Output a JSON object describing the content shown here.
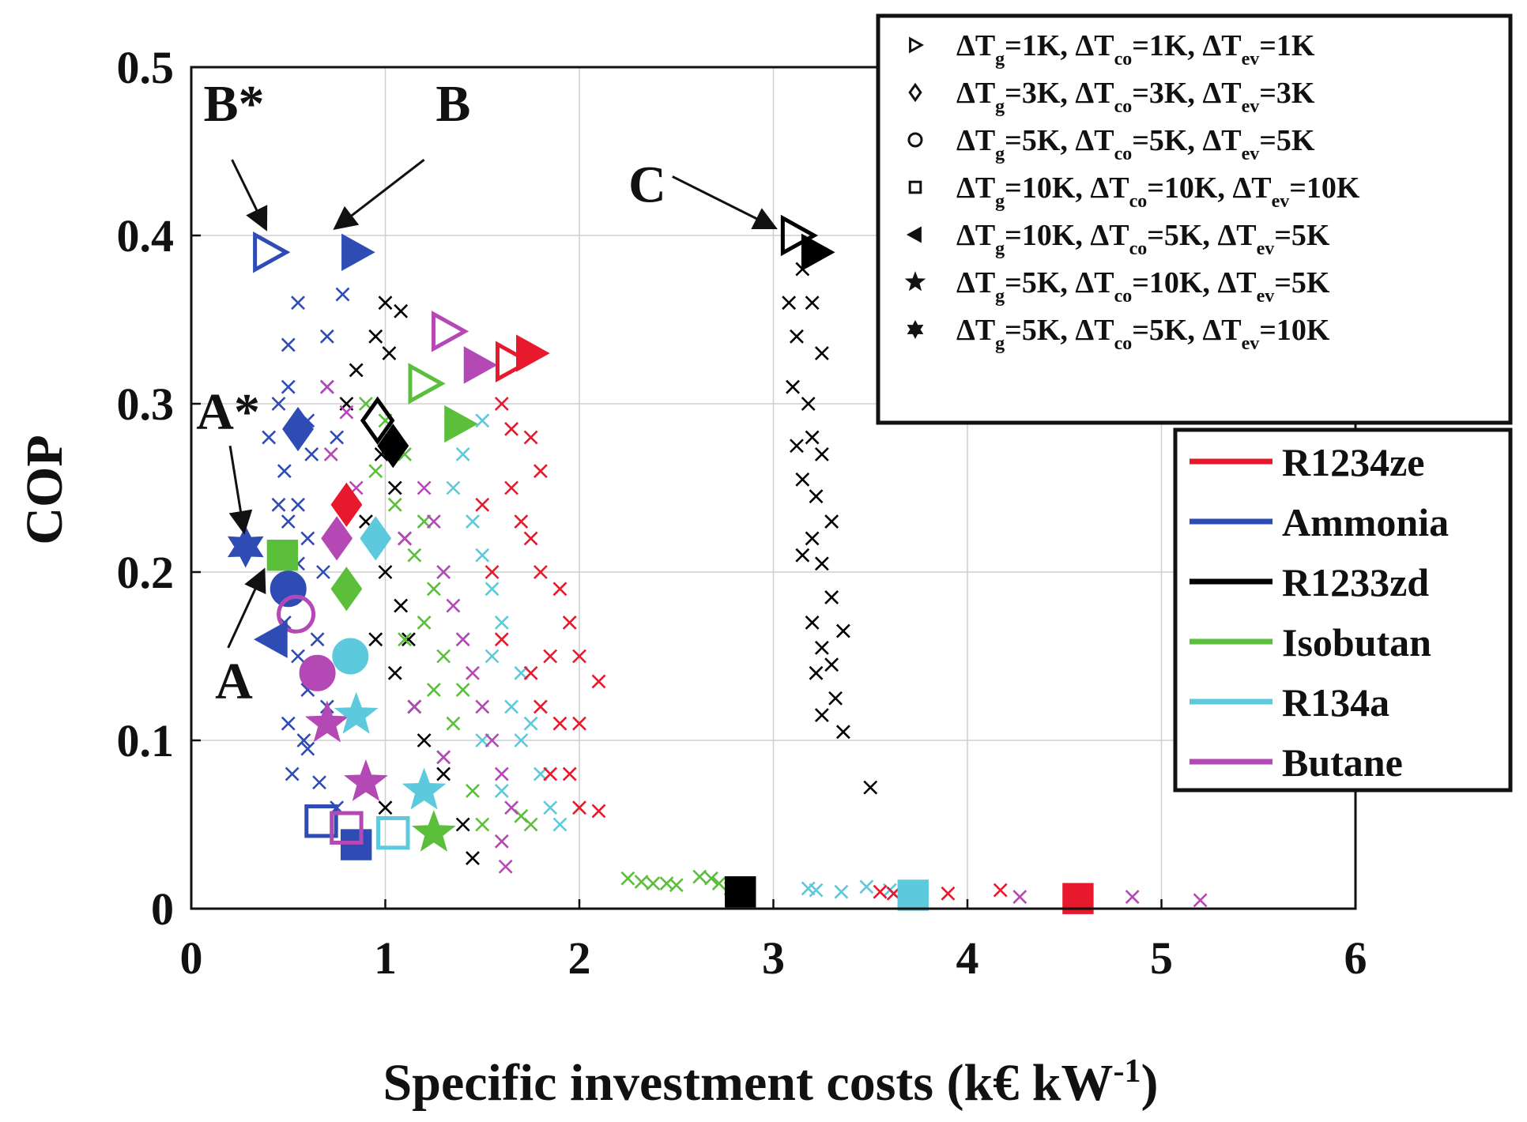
{
  "chart_data": {
    "type": "scatter",
    "xlabel": "Specific investment costs (k€ kW",
    "xlabel_sup": "-1",
    "xlabel_end": ")",
    "ylabel": "COP",
    "xlim": [
      0,
      6
    ],
    "ylim": [
      0,
      0.5
    ],
    "xticks": [
      "0",
      "1",
      "2",
      "3",
      "4",
      "5",
      "6"
    ],
    "yticks": [
      "0",
      "0.1",
      "0.2",
      "0.3",
      "0.4",
      "0.5"
    ],
    "grid": true,
    "colors": {
      "R1234ze": "#e8192c",
      "Ammonia": "#2f4cb4",
      "R1233zd": "#000000",
      "Isobutan": "#5cbf3c",
      "R134a": "#5cc9dd",
      "Butane": "#b448b4"
    },
    "fluid_legend": {
      "position": "right",
      "items": [
        {
          "name": "R1234ze",
          "color": "#e8192c"
        },
        {
          "name": "Ammonia",
          "color": "#2f4cb4"
        },
        {
          "name": "R1233zd",
          "color": "#000000"
        },
        {
          "name": "Isobutan",
          "color": "#5cbf3c"
        },
        {
          "name": "R134a",
          "color": "#5cc9dd"
        },
        {
          "name": "Butane",
          "color": "#b448b4"
        }
      ]
    },
    "marker_legend": {
      "position": "top-right",
      "items": [
        {
          "marker": "triangle-right",
          "g": "1K",
          "co": "1K",
          "ev": "1K"
        },
        {
          "marker": "diamond",
          "g": "3K",
          "co": "3K",
          "ev": "3K"
        },
        {
          "marker": "circle",
          "g": "5K",
          "co": "5K",
          "ev": "5K"
        },
        {
          "marker": "square",
          "g": "10K",
          "co": "10K",
          "ev": "10K"
        },
        {
          "marker": "triangle-left",
          "g": "10K",
          "co": "5K",
          "ev": "5K"
        },
        {
          "marker": "pentagram",
          "g": "5K",
          "co": "10K",
          "ev": "5K"
        },
        {
          "marker": "hexagram",
          "g": "5K",
          "co": "5K",
          "ev": "10K"
        }
      ]
    },
    "legend_labels": {
      "delta": "ΔT",
      "g": "g",
      "co": "co",
      "ev": "ev"
    },
    "annotations": [
      {
        "label": "B*",
        "text_at": [
          0.22,
          0.468
        ],
        "arrow_from": [
          0.21,
          0.445
        ],
        "arrow_to": [
          0.38,
          0.405
        ]
      },
      {
        "label": "B",
        "text_at": [
          1.35,
          0.468
        ],
        "arrow_from": [
          1.2,
          0.445
        ],
        "arrow_to": [
          0.75,
          0.405
        ]
      },
      {
        "label": "C",
        "text_at": [
          2.35,
          0.42
        ],
        "arrow_from": [
          2.48,
          0.435
        ],
        "arrow_to": [
          3.0,
          0.405
        ]
      },
      {
        "label": "A*",
        "text_at": [
          0.19,
          0.285
        ],
        "arrow_from": [
          0.2,
          0.275
        ],
        "arrow_to": [
          0.27,
          0.225
        ]
      },
      {
        "label": "A",
        "text_at": [
          0.22,
          0.125
        ],
        "arrow_from": [
          0.19,
          0.155
        ],
        "arrow_to": [
          0.37,
          0.2
        ]
      }
    ],
    "highlighted_points": [
      {
        "fluid": "Ammonia",
        "marker": "triangle-right",
        "filled": false,
        "x": 0.4,
        "y": 0.39
      },
      {
        "fluid": "Ammonia",
        "marker": "triangle-right",
        "filled": true,
        "x": 0.85,
        "y": 0.39
      },
      {
        "fluid": "R1233zd",
        "marker": "triangle-right",
        "filled": false,
        "x": 3.12,
        "y": 0.4
      },
      {
        "fluid": "R1233zd",
        "marker": "triangle-right",
        "filled": true,
        "x": 3.22,
        "y": 0.39
      },
      {
        "fluid": "Butane",
        "marker": "triangle-right",
        "filled": false,
        "x": 1.32,
        "y": 0.343
      },
      {
        "fluid": "Butane",
        "marker": "triangle-right",
        "filled": true,
        "x": 1.48,
        "y": 0.323
      },
      {
        "fluid": "R1234ze",
        "marker": "triangle-right",
        "filled": false,
        "x": 1.65,
        "y": 0.325
      },
      {
        "fluid": "R1234ze",
        "marker": "triangle-right",
        "filled": true,
        "x": 1.75,
        "y": 0.33
      },
      {
        "fluid": "Isobutan",
        "marker": "triangle-right",
        "filled": false,
        "x": 1.2,
        "y": 0.312
      },
      {
        "fluid": "Isobutan",
        "marker": "triangle-right",
        "filled": true,
        "x": 1.38,
        "y": 0.288
      },
      {
        "fluid": "R1233zd",
        "marker": "diamond",
        "filled": false,
        "x": 0.96,
        "y": 0.29
      },
      {
        "fluid": "R1233zd",
        "marker": "diamond",
        "filled": true,
        "x": 1.04,
        "y": 0.275
      },
      {
        "fluid": "Ammonia",
        "marker": "diamond",
        "filled": true,
        "x": 0.55,
        "y": 0.285
      },
      {
        "fluid": "R1234ze",
        "marker": "diamond",
        "filled": true,
        "x": 0.8,
        "y": 0.24
      },
      {
        "fluid": "Butane",
        "marker": "diamond",
        "filled": true,
        "x": 0.75,
        "y": 0.22
      },
      {
        "fluid": "R134a",
        "marker": "diamond",
        "filled": true,
        "x": 0.95,
        "y": 0.22
      },
      {
        "fluid": "Isobutan",
        "marker": "diamond",
        "filled": true,
        "x": 0.8,
        "y": 0.19
      },
      {
        "fluid": "Ammonia",
        "marker": "hexagram",
        "filled": true,
        "x": 0.28,
        "y": 0.215
      },
      {
        "fluid": "Isobutan",
        "marker": "square",
        "filled": true,
        "x": 0.47,
        "y": 0.21
      },
      {
        "fluid": "Ammonia",
        "marker": "circle",
        "filled": true,
        "x": 0.5,
        "y": 0.19
      },
      {
        "fluid": "Butane",
        "marker": "circle",
        "filled": false,
        "x": 0.54,
        "y": 0.175
      },
      {
        "fluid": "R134a",
        "marker": "circle",
        "filled": true,
        "x": 0.82,
        "y": 0.15
      },
      {
        "fluid": "Butane",
        "marker": "circle",
        "filled": true,
        "x": 0.65,
        "y": 0.14
      },
      {
        "fluid": "Ammonia",
        "marker": "triangle-left",
        "filled": true,
        "x": 0.42,
        "y": 0.16
      },
      {
        "fluid": "Butane",
        "marker": "pentagram",
        "filled": true,
        "x": 0.7,
        "y": 0.11
      },
      {
        "fluid": "R134a",
        "marker": "pentagram",
        "filled": true,
        "x": 0.85,
        "y": 0.115
      },
      {
        "fluid": "Butane",
        "marker": "pentagram",
        "filled": true,
        "x": 0.9,
        "y": 0.075
      },
      {
        "fluid": "R134a",
        "marker": "pentagram",
        "filled": true,
        "x": 1.2,
        "y": 0.07
      },
      {
        "fluid": "Isobutan",
        "marker": "pentagram",
        "filled": true,
        "x": 1.25,
        "y": 0.045
      },
      {
        "fluid": "Ammonia",
        "marker": "square",
        "filled": false,
        "x": 0.67,
        "y": 0.052
      },
      {
        "fluid": "Ammonia",
        "marker": "square",
        "filled": true,
        "x": 0.85,
        "y": 0.038
      },
      {
        "fluid": "Butane",
        "marker": "square",
        "filled": false,
        "x": 0.8,
        "y": 0.048
      },
      {
        "fluid": "R134a",
        "marker": "square",
        "filled": false,
        "x": 1.04,
        "y": 0.045
      },
      {
        "fluid": "R1233zd",
        "marker": "square",
        "filled": true,
        "x": 2.83,
        "y": 0.01
      },
      {
        "fluid": "R134a",
        "marker": "square",
        "filled": true,
        "x": 3.72,
        "y": 0.008
      },
      {
        "fluid": "R1234ze",
        "marker": "square",
        "filled": true,
        "x": 4.57,
        "y": 0.006
      }
    ],
    "cross_series": [
      {
        "fluid": "Ammonia",
        "points": [
          [
            0.55,
            0.36
          ],
          [
            0.78,
            0.365
          ],
          [
            0.5,
            0.335
          ],
          [
            0.5,
            0.31
          ],
          [
            0.6,
            0.29
          ],
          [
            0.48,
            0.26
          ],
          [
            0.55,
            0.24
          ],
          [
            0.6,
            0.22
          ],
          [
            0.52,
            0.19
          ],
          [
            0.48,
            0.17
          ],
          [
            0.55,
            0.15
          ],
          [
            0.6,
            0.13
          ],
          [
            0.5,
            0.11
          ],
          [
            0.6,
            0.095
          ],
          [
            0.52,
            0.08
          ],
          [
            0.7,
            0.34
          ],
          [
            0.7,
            0.31
          ],
          [
            0.75,
            0.28
          ],
          [
            0.45,
            0.3
          ],
          [
            0.62,
            0.27
          ],
          [
            0.68,
            0.2
          ],
          [
            0.5,
            0.23
          ],
          [
            0.55,
            0.205
          ],
          [
            0.65,
            0.16
          ],
          [
            0.7,
            0.12
          ],
          [
            0.58,
            0.1
          ],
          [
            0.66,
            0.075
          ],
          [
            0.75,
            0.06
          ],
          [
            0.4,
            0.28
          ],
          [
            0.45,
            0.24
          ]
        ]
      },
      {
        "fluid": "R1233zd",
        "points": [
          [
            1.0,
            0.36
          ],
          [
            1.08,
            0.355
          ],
          [
            0.95,
            0.34
          ],
          [
            0.85,
            0.32
          ],
          [
            1.02,
            0.33
          ],
          [
            0.8,
            0.3
          ],
          [
            0.98,
            0.27
          ],
          [
            1.05,
            0.25
          ],
          [
            1.1,
            0.22
          ],
          [
            1.0,
            0.2
          ],
          [
            1.08,
            0.18
          ],
          [
            1.12,
            0.16
          ],
          [
            1.05,
            0.14
          ],
          [
            1.15,
            0.12
          ],
          [
            1.2,
            0.1
          ],
          [
            1.3,
            0.08
          ],
          [
            1.4,
            0.05
          ],
          [
            1.45,
            0.03
          ],
          [
            0.9,
            0.23
          ],
          [
            0.95,
            0.16
          ],
          [
            1.0,
            0.06
          ],
          [
            3.15,
            0.38
          ],
          [
            3.08,
            0.36
          ],
          [
            3.2,
            0.36
          ],
          [
            3.12,
            0.34
          ],
          [
            3.25,
            0.33
          ],
          [
            3.1,
            0.31
          ],
          [
            3.18,
            0.3
          ],
          [
            3.2,
            0.28
          ],
          [
            3.12,
            0.275
          ],
          [
            3.25,
            0.27
          ],
          [
            3.15,
            0.255
          ],
          [
            3.22,
            0.245
          ],
          [
            3.3,
            0.23
          ],
          [
            3.2,
            0.22
          ],
          [
            3.15,
            0.21
          ],
          [
            3.25,
            0.205
          ],
          [
            3.3,
            0.185
          ],
          [
            3.2,
            0.17
          ],
          [
            3.36,
            0.165
          ],
          [
            3.25,
            0.155
          ],
          [
            3.3,
            0.145
          ],
          [
            3.22,
            0.14
          ],
          [
            3.32,
            0.125
          ],
          [
            3.25,
            0.115
          ],
          [
            3.36,
            0.105
          ],
          [
            3.5,
            0.072
          ]
        ]
      },
      {
        "fluid": "Isobutan",
        "points": [
          [
            0.9,
            0.3
          ],
          [
            1.0,
            0.29
          ],
          [
            1.1,
            0.27
          ],
          [
            1.05,
            0.24
          ],
          [
            1.2,
            0.23
          ],
          [
            1.15,
            0.21
          ],
          [
            1.25,
            0.19
          ],
          [
            1.2,
            0.17
          ],
          [
            1.3,
            0.15
          ],
          [
            1.25,
            0.13
          ],
          [
            1.35,
            0.11
          ],
          [
            1.3,
            0.09
          ],
          [
            1.45,
            0.07
          ],
          [
            1.5,
            0.05
          ],
          [
            1.7,
            0.055
          ],
          [
            1.75,
            0.05
          ],
          [
            0.95,
            0.26
          ],
          [
            1.1,
            0.16
          ],
          [
            1.4,
            0.13
          ],
          [
            2.25,
            0.018
          ],
          [
            2.32,
            0.016
          ],
          [
            2.38,
            0.015
          ],
          [
            2.45,
            0.015
          ],
          [
            2.5,
            0.014
          ],
          [
            2.62,
            0.019
          ],
          [
            2.68,
            0.018
          ],
          [
            2.72,
            0.015
          ],
          [
            2.78,
            0.012
          ]
        ]
      },
      {
        "fluid": "R134a",
        "points": [
          [
            1.5,
            0.29
          ],
          [
            1.4,
            0.27
          ],
          [
            1.35,
            0.25
          ],
          [
            1.45,
            0.23
          ],
          [
            1.5,
            0.21
          ],
          [
            1.55,
            0.19
          ],
          [
            1.6,
            0.17
          ],
          [
            1.55,
            0.15
          ],
          [
            1.7,
            0.14
          ],
          [
            1.65,
            0.12
          ],
          [
            1.7,
            0.1
          ],
          [
            1.8,
            0.08
          ],
          [
            1.85,
            0.06
          ],
          [
            1.9,
            0.05
          ],
          [
            1.3,
            0.2
          ],
          [
            1.4,
            0.16
          ],
          [
            1.5,
            0.1
          ],
          [
            1.75,
            0.11
          ],
          [
            1.6,
            0.07
          ],
          [
            3.18,
            0.012
          ],
          [
            3.22,
            0.011
          ],
          [
            3.35,
            0.01
          ],
          [
            3.48,
            0.013
          ],
          [
            3.6,
            0.011
          ]
        ]
      },
      {
        "fluid": "Butane",
        "points": [
          [
            0.7,
            0.31
          ],
          [
            0.8,
            0.295
          ],
          [
            0.72,
            0.27
          ],
          [
            0.85,
            0.25
          ],
          [
            1.2,
            0.25
          ],
          [
            1.25,
            0.23
          ],
          [
            1.3,
            0.2
          ],
          [
            1.35,
            0.18
          ],
          [
            1.4,
            0.16
          ],
          [
            1.45,
            0.14
          ],
          [
            1.5,
            0.12
          ],
          [
            1.55,
            0.1
          ],
          [
            1.6,
            0.08
          ],
          [
            1.65,
            0.06
          ],
          [
            1.6,
            0.04
          ],
          [
            1.62,
            0.025
          ],
          [
            1.1,
            0.22
          ],
          [
            1.15,
            0.12
          ],
          [
            1.3,
            0.09
          ],
          [
            4.27,
            0.007
          ],
          [
            4.85,
            0.007
          ],
          [
            5.2,
            0.005
          ]
        ]
      },
      {
        "fluid": "R1234ze",
        "points": [
          [
            1.6,
            0.3
          ],
          [
            1.65,
            0.285
          ],
          [
            1.75,
            0.28
          ],
          [
            1.8,
            0.26
          ],
          [
            1.65,
            0.25
          ],
          [
            1.7,
            0.23
          ],
          [
            1.75,
            0.22
          ],
          [
            1.8,
            0.2
          ],
          [
            1.9,
            0.19
          ],
          [
            1.95,
            0.17
          ],
          [
            1.85,
            0.15
          ],
          [
            1.75,
            0.14
          ],
          [
            1.8,
            0.12
          ],
          [
            1.9,
            0.11
          ],
          [
            2.0,
            0.11
          ],
          [
            2.1,
            0.135
          ],
          [
            2.0,
            0.15
          ],
          [
            1.85,
            0.08
          ],
          [
            1.95,
            0.08
          ],
          [
            2.0,
            0.06
          ],
          [
            2.1,
            0.058
          ],
          [
            1.5,
            0.24
          ],
          [
            1.55,
            0.2
          ],
          [
            1.6,
            0.16
          ],
          [
            3.55,
            0.01
          ],
          [
            3.62,
            0.009
          ],
          [
            3.9,
            0.009
          ],
          [
            4.17,
            0.011
          ]
        ]
      }
    ]
  },
  "plot_hooks": [
    "B*",
    "B",
    "C",
    "A*",
    "A"
  ]
}
